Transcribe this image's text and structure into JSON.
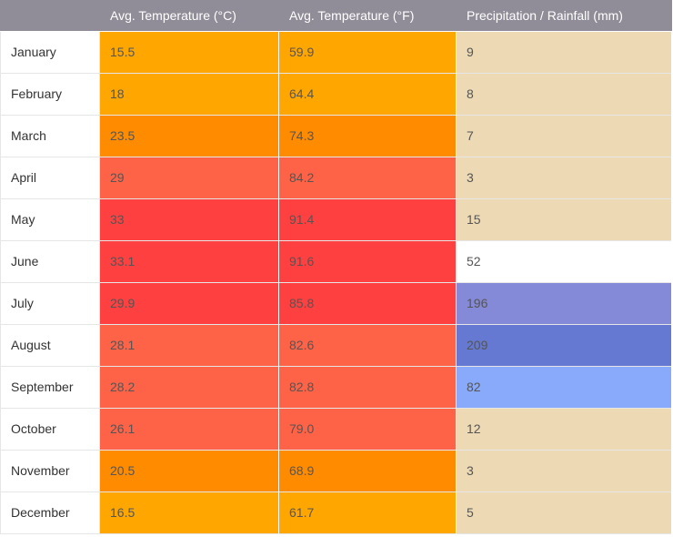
{
  "header": {
    "col0": "",
    "col1": "Avg. Temperature (°C)",
    "col2": "Avg. Temperature (°F)",
    "col3": "Precipitation / Rainfall (mm)"
  },
  "rows": [
    {
      "month": "January",
      "c": "15.5",
      "f": "59.9",
      "mm": "9",
      "c_color": "#ffa600",
      "mm_color": "#eddab4"
    },
    {
      "month": "February",
      "c": "18",
      "f": "64.4",
      "mm": "8",
      "c_color": "#ffa600",
      "mm_color": "#eddab4"
    },
    {
      "month": "March",
      "c": "23.5",
      "f": "74.3",
      "mm": "7",
      "c_color": "#ff8c00",
      "mm_color": "#eddab4"
    },
    {
      "month": "April",
      "c": "29",
      "f": "84.2",
      "mm": "3",
      "c_color": "#ff6347",
      "mm_color": "#eddab4"
    },
    {
      "month": "May",
      "c": "33",
      "f": "91.4",
      "mm": "15",
      "c_color": "#ff4040",
      "mm_color": "#eddab4"
    },
    {
      "month": "June",
      "c": "33.1",
      "f": "91.6",
      "mm": "52",
      "c_color": "#ff4040",
      "mm_color": "#ffffff"
    },
    {
      "month": "July",
      "c": "29.9",
      "f": "85.8",
      "mm": "196",
      "c_color": "#ff4040",
      "mm_color": "#8489d8"
    },
    {
      "month": "August",
      "c": "28.1",
      "f": "82.6",
      "mm": "209",
      "c_color": "#ff6347",
      "mm_color": "#6579d2"
    },
    {
      "month": "September",
      "c": "28.2",
      "f": "82.8",
      "mm": "82",
      "c_color": "#ff6347",
      "mm_color": "#89aafb"
    },
    {
      "month": "October",
      "c": "26.1",
      "f": "79.0",
      "mm": "12",
      "c_color": "#ff6347",
      "mm_color": "#eddab4"
    },
    {
      "month": "November",
      "c": "20.5",
      "f": "68.9",
      "mm": "3",
      "c_color": "#ff8c00",
      "mm_color": "#eddab4"
    },
    {
      "month": "December",
      "c": "16.5",
      "f": "61.7",
      "mm": "5",
      "c_color": "#ffa600",
      "mm_color": "#eddab4"
    }
  ],
  "chart_data": {
    "type": "table",
    "columns": [
      "",
      "Avg. Temperature (°C)",
      "Avg. Temperature (°F)",
      "Precipitation / Rainfall (mm)"
    ],
    "categories": [
      "January",
      "February",
      "March",
      "April",
      "May",
      "June",
      "July",
      "August",
      "September",
      "October",
      "November",
      "December"
    ],
    "series": [
      {
        "name": "Avg. Temperature (°C)",
        "values": [
          15.5,
          18,
          23.5,
          29,
          33,
          33.1,
          29.9,
          28.1,
          28.2,
          26.1,
          20.5,
          16.5
        ]
      },
      {
        "name": "Avg. Temperature (°F)",
        "values": [
          59.9,
          64.4,
          74.3,
          84.2,
          91.4,
          91.6,
          85.8,
          82.6,
          82.8,
          79.0,
          68.9,
          61.7
        ]
      },
      {
        "name": "Precipitation / Rainfall (mm)",
        "values": [
          9,
          8,
          7,
          3,
          15,
          52,
          196,
          209,
          82,
          12,
          3,
          5
        ]
      }
    ]
  }
}
